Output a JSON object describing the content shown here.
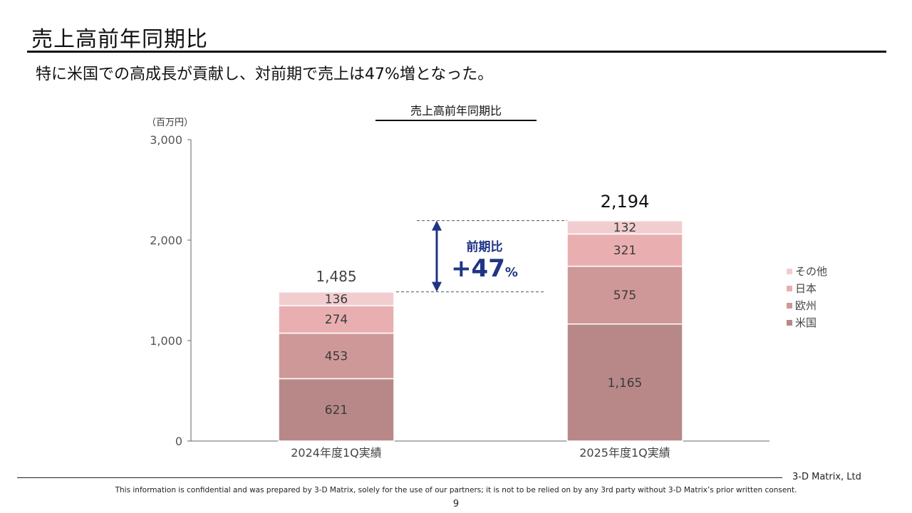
{
  "header": {
    "title": "売上高前年同期比",
    "subtitle": "特に米国での高成長が貢献し、対前期で売上は47%増となった。"
  },
  "footer": {
    "company": "3-D Matrix, Ltd",
    "disclaimer": "This information is confidential and was prepared by 3-D Matrix, solely for the use of our partners; it is not to be relied on by any 3rd party without 3-D Matrix’s prior written consent.",
    "page": "9"
  },
  "chart_data": {
    "type": "bar",
    "stacked": true,
    "title": "売上高前年同期比",
    "unit_label": "（百万円）",
    "categories": [
      "2024年度1Q実績",
      "2025年度1Q実績"
    ],
    "series": [
      {
        "name": "米国",
        "values": [
          621,
          1165
        ],
        "color": "#b88888"
      },
      {
        "name": "欧州",
        "values": [
          453,
          575
        ],
        "color": "#cf9898"
      },
      {
        "name": "日本",
        "values": [
          274,
          321
        ],
        "color": "#e9afb0"
      },
      {
        "name": "その他",
        "values": [
          136,
          132
        ],
        "color": "#f2cdcf"
      }
    ],
    "totals": [
      "1,485",
      "2,194"
    ],
    "ylim": [
      0,
      3000
    ],
    "yticks": [
      0,
      1000,
      2000,
      3000
    ],
    "ytick_labels": [
      "0",
      "1,000",
      "2,000",
      "3,000"
    ],
    "grid": false,
    "legend_position": "right",
    "annotation": {
      "label": "前期比",
      "value": "+47",
      "suffix": "%",
      "color": "#1f3584",
      "from_value": 1485,
      "to_value": 2194
    }
  }
}
